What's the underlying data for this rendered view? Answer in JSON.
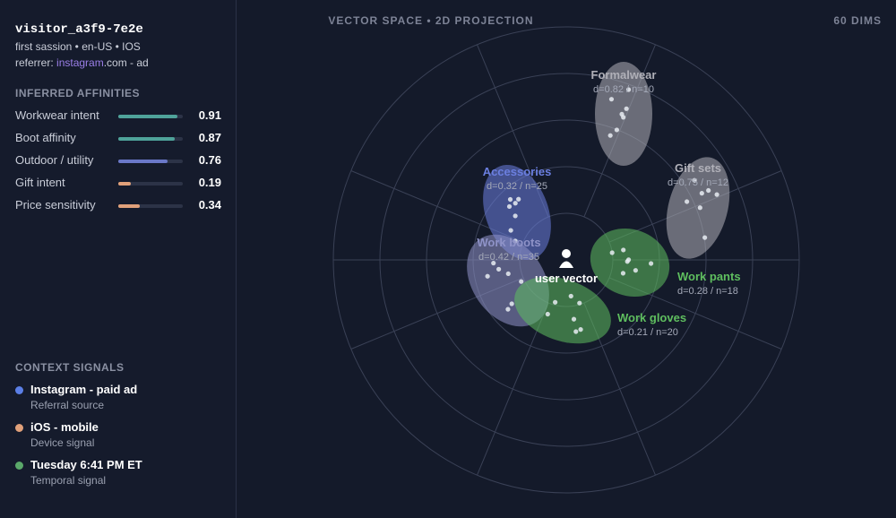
{
  "visitor": {
    "id": "visitor_a3f9-7e2e",
    "meta": "first sassion • en-US • IOS",
    "referrer": {
      "label": "referrer:",
      "source": "instagram",
      "rest": ".com - ad"
    }
  },
  "affinities": {
    "title": "INFERRED AFFINITIES",
    "items": [
      {
        "name": "Workwear intent",
        "value": 0.91,
        "color": "#4fa39a"
      },
      {
        "name": "Boot affinity",
        "value": 0.87,
        "color": "#4fa39a"
      },
      {
        "name": "Outdoor / utility",
        "value": 0.76,
        "color": "#6a78c8"
      },
      {
        "name": "Gift intent",
        "value": 0.19,
        "color": "#e0a07a"
      },
      {
        "name": "Price sensitivity",
        "value": 0.34,
        "color": "#e0a07a"
      }
    ]
  },
  "context": {
    "title": "CONTEXT SIGNALS",
    "items": [
      {
        "title": "Instagram - paid ad",
        "subtitle": "Referral source",
        "color": "#5b7fe6"
      },
      {
        "title": "iOS - mobile",
        "subtitle": "Device signal",
        "color": "#e0a07a"
      },
      {
        "title": "Tuesday 6:41 PM ET",
        "subtitle": "Temporal signal",
        "color": "#5aa86a"
      }
    ]
  },
  "space": {
    "title": "VECTOR SPACE • 2D PROJECTION",
    "dims": "60 DIMS",
    "center_label": "user vector",
    "clusters": [
      {
        "name": "Formalwear",
        "stats": "d=0.82 / n=10",
        "color": "#b0b0b8"
      },
      {
        "name": "Gift sets",
        "stats": "d=0.75 / n=12",
        "color": "#b0b0b8"
      },
      {
        "name": "Accessories",
        "stats": "d=0.32 / n=25",
        "color": "#6b7fe0"
      },
      {
        "name": "Work boots",
        "stats": "d=0.42 / n=35",
        "color": "#8f93c8"
      },
      {
        "name": "Work pants",
        "stats": "d=0.28 / n=18",
        "color": "#5fbf5f"
      },
      {
        "name": "Work gloves",
        "stats": "d=0.21 / n=20",
        "color": "#5fbf5f"
      }
    ]
  }
}
